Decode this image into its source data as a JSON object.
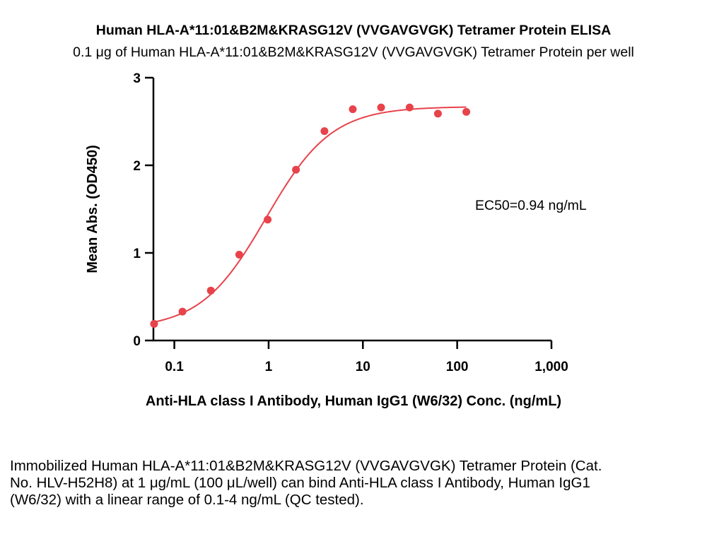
{
  "chart_data": {
    "type": "scatter",
    "title": "Human HLA-A*11:01&B2M&KRASG12V (VVGAVGVGK) Tetramer Protein ELISA",
    "subtitle": "0.1 μg of Human HLA-A*11:01&B2M&KRASG12V (VVGAVGVGK) Tetramer Protein per well",
    "xlabel": "Anti-HLA class I Antibody, Human IgG1 (W6/32) Conc. (ng/mL)",
    "ylabel": "Mean Abs. (OD450)",
    "x_scale": "log",
    "xlim": [
      0.06,
      1000
    ],
    "ylim": [
      0,
      3
    ],
    "x_ticks": [
      0.1,
      1,
      10,
      100,
      1000
    ],
    "x_tick_labels": [
      "0.1",
      "1",
      "10",
      "100",
      "1,000"
    ],
    "y_ticks": [
      0,
      1,
      2,
      3
    ],
    "y_tick_labels": [
      "0",
      "1",
      "2",
      "3"
    ],
    "series": [
      {
        "x": [
          0.061,
          0.122,
          0.244,
          0.488,
          0.977,
          1.95,
          3.91,
          7.81,
          15.6,
          31.3,
          62.5,
          125
        ],
        "y": [
          0.19,
          0.33,
          0.57,
          0.98,
          1.38,
          1.95,
          2.39,
          2.64,
          2.66,
          2.66,
          2.59,
          2.61
        ],
        "color": "#e8424a"
      }
    ],
    "fit": {
      "model": "4PL",
      "bottom": 0.13,
      "top": 2.67,
      "ec50": 0.94,
      "hill": 1.25,
      "color": "#e8424a"
    },
    "annotation": "EC50=0.94 ng/mL"
  },
  "caption": "Immobilized Human HLA-A*11:01&B2M&KRASG12V (VVGAVGVGK) Tetramer Protein (Cat. No. HLV-H52H8) at 1 μg/mL (100 μL/well) can bind Anti-HLA class I Antibody, Human IgG1 (W6/32) with a linear range of 0.1-4 ng/mL (QC tested)."
}
